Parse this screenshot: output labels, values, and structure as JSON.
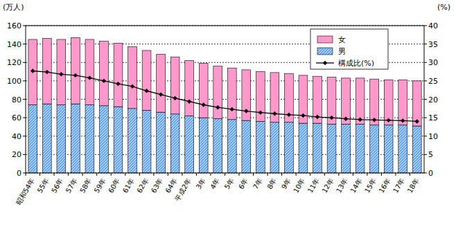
{
  "chart_data": {
    "type": "bar",
    "stacked": true,
    "grid": true,
    "legend": "upper right",
    "y_label": "(万人)",
    "y2_label": "(%)",
    "categories": [
      "昭和54年",
      "55年",
      "56年",
      "57年",
      "58年",
      "59年",
      "60年",
      "61年",
      "62年",
      "63年",
      "64年",
      "平成2年",
      "3年",
      "4年",
      "5年",
      "6年",
      "7年",
      "8年",
      "9年",
      "10年",
      "11年",
      "12年",
      "13年",
      "14年",
      "15年",
      "16年",
      "17年",
      "18年"
    ],
    "ylim": [
      0,
      160
    ],
    "yticks": [
      0,
      20,
      40,
      60,
      80,
      100,
      120,
      140,
      160
    ],
    "y2lim": [
      0,
      40
    ],
    "y2ticks": [
      0,
      5,
      10,
      15,
      20,
      25,
      30,
      35,
      40
    ],
    "series": [
      {
        "name": "女",
        "color": "#ff99cc",
        "type": "bar",
        "values": [
          71,
          71,
          71,
          72,
          71,
          70,
          69,
          67,
          65,
          63,
          62,
          60,
          59,
          57,
          56,
          55,
          54,
          54,
          53,
          52,
          51,
          51,
          50,
          50,
          50,
          49,
          49,
          49
        ]
      },
      {
        "name": "男",
        "color": "#99ccff",
        "type": "bar",
        "values": [
          74,
          75,
          74,
          75,
          74,
          73,
          72,
          70,
          68,
          66,
          64,
          62,
          60,
          59,
          58,
          57,
          56,
          55,
          55,
          54,
          54,
          53,
          53,
          53,
          52,
          52,
          52,
          51
        ]
      },
      {
        "name": "構成比(%)",
        "color": "#000000",
        "type": "line",
        "axis": "y2",
        "marker": "diamond",
        "values": [
          27.7,
          27.4,
          26.8,
          26.5,
          25.8,
          25.0,
          24.2,
          23.5,
          22.3,
          21.3,
          20.3,
          19.4,
          18.5,
          17.8,
          17.3,
          16.8,
          16.4,
          16.1,
          15.8,
          15.6,
          15.2,
          15.0,
          14.7,
          14.5,
          14.4,
          14.3,
          14.2,
          14.0
        ]
      }
    ]
  }
}
